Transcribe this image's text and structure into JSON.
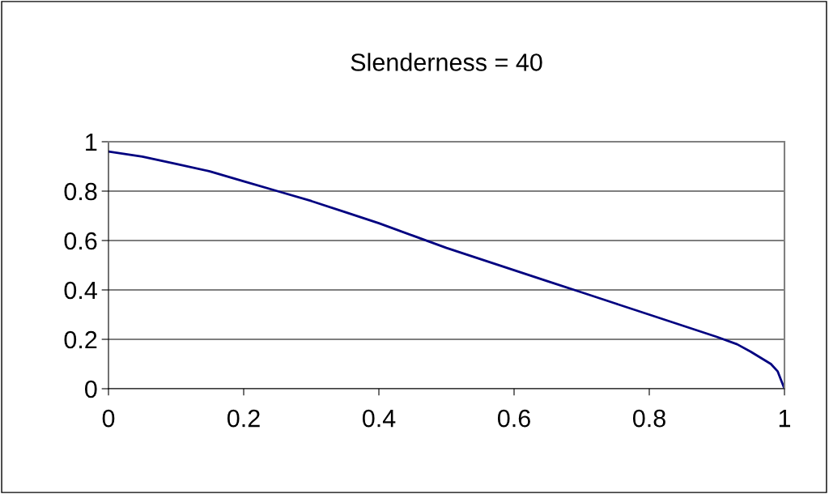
{
  "chart_data": {
    "type": "line",
    "title": "Slenderness = 40",
    "x": [
      0,
      0.05,
      0.1,
      0.15,
      0.2,
      0.25,
      0.3,
      0.35,
      0.4,
      0.45,
      0.5,
      0.55,
      0.6,
      0.65,
      0.7,
      0.75,
      0.8,
      0.85,
      0.9,
      0.93,
      0.95,
      0.98,
      0.99,
      1
    ],
    "series": [
      {
        "color": "#000080",
        "values": [
          0.96,
          0.94,
          0.91,
          0.88,
          0.84,
          0.8,
          0.76,
          0.715,
          0.67,
          0.62,
          0.57,
          0.525,
          0.48,
          0.435,
          0.39,
          0.345,
          0.3,
          0.255,
          0.21,
          0.18,
          0.15,
          0.1,
          0.07,
          0.0
        ]
      }
    ],
    "xlim": [
      0,
      1
    ],
    "xticks": [
      0,
      0.2,
      0.4,
      0.6,
      0.8,
      1
    ],
    "ylim": [
      0,
      1
    ],
    "yticks": [
      0,
      0.2,
      0.4,
      0.6,
      0.8,
      1
    ],
    "grid": "y",
    "marker": "none",
    "line_style": "solid"
  }
}
